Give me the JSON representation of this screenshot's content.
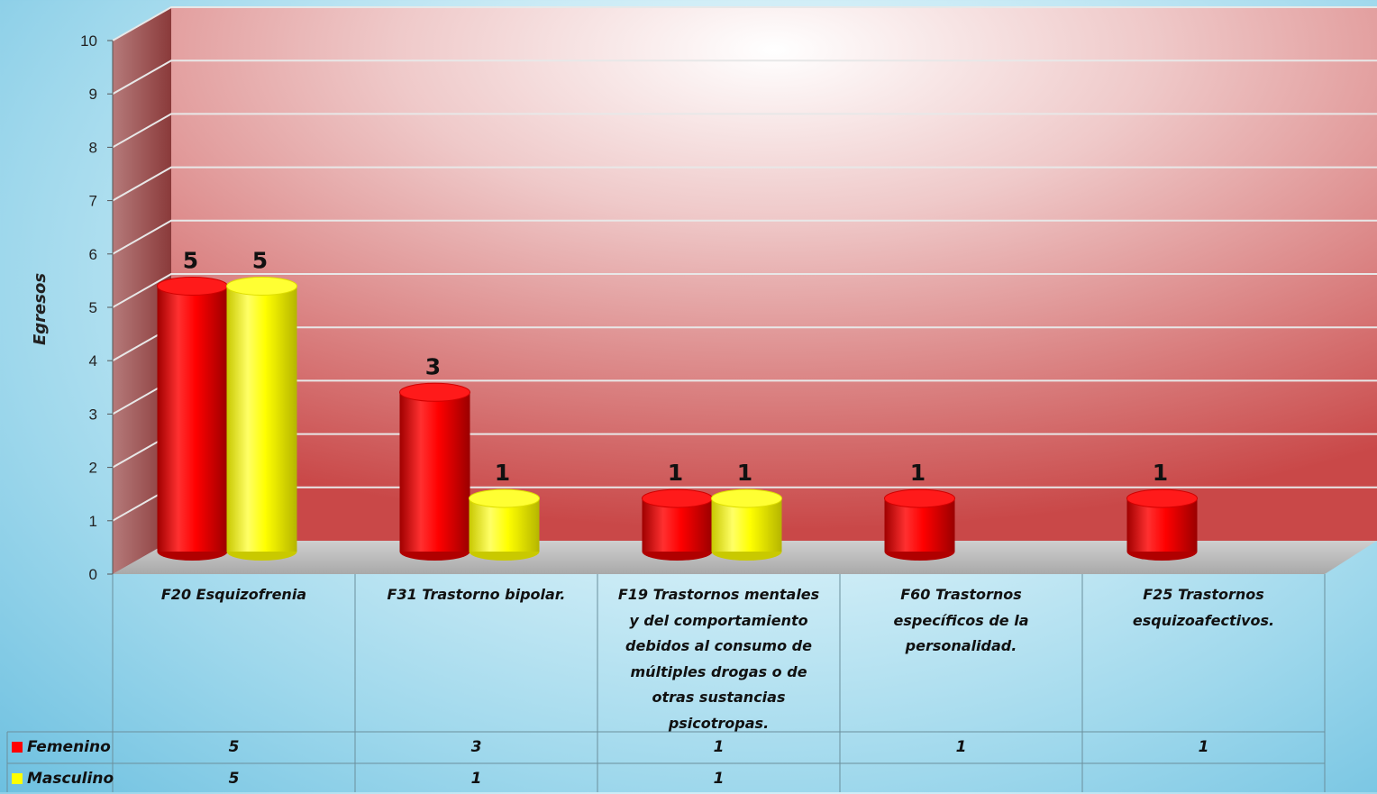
{
  "chart_data": {
    "type": "bar",
    "ylabel": "Egresos",
    "ylim": [
      0,
      10
    ],
    "yticks": [
      "0",
      "1",
      "2",
      "3",
      "4",
      "5",
      "6",
      "7",
      "8",
      "9",
      "10"
    ],
    "categories": [
      "F20 Esquizofrenia",
      "F31 Trastorno bipolar.",
      "F19 Trastornos mentales y del comportamiento debidos al consumo de múltiples drogas o de otras sustancias psicotropas.",
      "F60 Trastornos específicos de la personalidad.",
      "F25 Trastornos esquizoafectivos."
    ],
    "category_lines": [
      [
        "F20 Esquizofrenia"
      ],
      [
        "F31 Trastorno bipolar."
      ],
      [
        "F19 Trastornos mentales",
        "y del comportamiento",
        "debidos al consumo de",
        "múltiples drogas o de",
        "otras sustancias",
        "psicotropas."
      ],
      [
        "F60 Trastornos",
        "específicos de la",
        "personalidad."
      ],
      [
        "F25 Trastornos",
        "esquizoafectivos."
      ]
    ],
    "series": [
      {
        "name": "Femenino",
        "color": "#ff0000",
        "values": [
          5,
          3,
          1,
          1,
          1
        ]
      },
      {
        "name": "Masculino",
        "color": "#ffff00",
        "values": [
          5,
          1,
          1,
          null,
          null
        ]
      }
    ],
    "data_table": {
      "Femenino": [
        "5",
        "3",
        "1",
        "1",
        "1"
      ],
      "Masculino": [
        "5",
        "1",
        "1",
        "",
        ""
      ]
    },
    "legend": "data-table",
    "grid": true,
    "style": "3d-cylinder"
  }
}
